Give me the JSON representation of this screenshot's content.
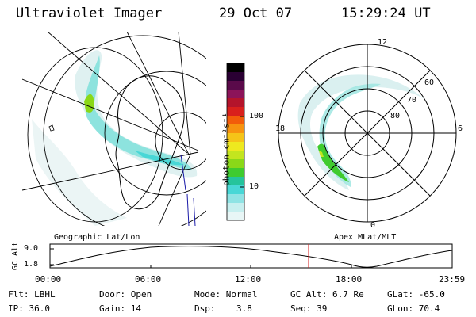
{
  "header": {
    "instrument": "Ultraviolet Imager",
    "date": "29 Oct 07",
    "time": "15:29:24 UT"
  },
  "colorbar": {
    "unit_label": "photon cm⁻²s⁻¹",
    "ticks": [
      "100",
      "10"
    ],
    "colors": [
      "#000000",
      "#2a0033",
      "#5a0a4a",
      "#8c1459",
      "#b4142b",
      "#d9201c",
      "#f25c0a",
      "#f7930f",
      "#f5c418",
      "#eee91f",
      "#c3e51f",
      "#8ad818",
      "#3fcb2e",
      "#25c49c",
      "#48d7d6",
      "#8fe3e4",
      "#c7efef",
      "#e8f6f6"
    ]
  },
  "polar_plot": {
    "mlt_labels": [
      "12",
      "18",
      "6",
      "0"
    ],
    "lat_labels": [
      "60",
      "70",
      "80"
    ]
  },
  "map_labels": {
    "left": "Geographic Lat/Lon",
    "right": "Apex MLat/MLT"
  },
  "altitude_plot": {
    "ylabel": "GC Alt",
    "yticks": [
      "9.0",
      "1.8"
    ],
    "xticks": [
      "00:00",
      "06:00",
      "12:00",
      "18:00",
      "23:59"
    ]
  },
  "info": {
    "flt": "Flt: LBHL",
    "ip": "IP: 36.0",
    "door": "Door: Open",
    "gain": "Gain: 14",
    "mode": "Mode: Normal",
    "dsp": "Dsp:    3.8",
    "gc_alt": "GC Alt: 6.7 Re",
    "seq": "Seq: 39",
    "glat": "GLat: -65.0",
    "glon": "GLon: 70.4"
  }
}
